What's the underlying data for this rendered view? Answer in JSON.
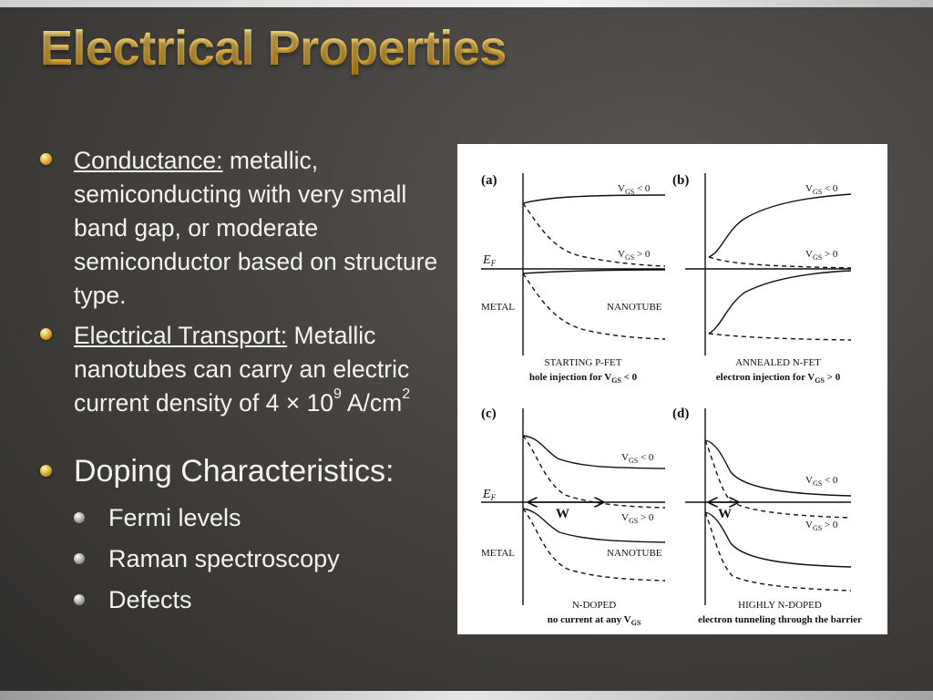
{
  "slide": {
    "title": "Electrical Properties",
    "bullets": [
      {
        "label": "Conductance:",
        "text": " metallic, semiconducting with very small band gap, or moderate semiconductor based on structure type."
      },
      {
        "label": "Electrical Transport:",
        "text": " Metallic nanotubes can carry an electric current density of 4 × 10",
        "sup1": "9",
        "mid": " A/cm",
        "sup2": "2"
      },
      {
        "text": "Doping Characteristics:",
        "subitems": [
          "Fermi levels",
          "Raman spectroscopy",
          "Defects"
        ]
      }
    ]
  },
  "figure": {
    "panels": [
      {
        "label": "(a)",
        "curve_top": "V",
        "curve_top_sub": "GS",
        "curve_top_cond": " < 0",
        "curve_bottom": "V",
        "curve_bottom_sub": "GS",
        "curve_bottom_cond": " > 0",
        "left_text": "METAL",
        "right_text": "NANOTUBE",
        "axis_label": "E",
        "axis_sub": "F",
        "caption1": "STARTING P-FET",
        "caption2": "hole injection for V",
        "caption2_sub": "GS",
        "caption2_end": " < 0"
      },
      {
        "label": "(b)",
        "curve_top": "V",
        "curve_top_sub": "GS",
        "curve_top_cond": " < 0",
        "curve_bottom": "V",
        "curve_bottom_sub": "GS",
        "curve_bottom_cond": " > 0",
        "caption1": "ANNEALED N-FET",
        "caption2": "electron injection for V",
        "caption2_sub": "GS",
        "caption2_end": " > 0"
      },
      {
        "label": "(c)",
        "curve_top": "V",
        "curve_top_sub": "GS",
        "curve_top_cond": " < 0",
        "curve_bottom": "V",
        "curve_bottom_sub": "GS",
        "curve_bottom_cond": " > 0",
        "left_text": "METAL",
        "right_text": "NANOTUBE",
        "axis_label": "E",
        "axis_sub": "F",
        "width_label": "W",
        "caption1": "N-DOPED",
        "caption2": "no current at any V",
        "caption2_sub": "GS"
      },
      {
        "label": "(d)",
        "curve_top": "V",
        "curve_top_sub": "GS",
        "curve_top_cond": " < 0",
        "curve_bottom": "V",
        "curve_bottom_sub": "GS",
        "curve_bottom_cond": " > 0",
        "width_label": "W",
        "caption1": "HIGHLY N-DOPED",
        "caption2": "electron tunneling through the barrier"
      }
    ]
  },
  "colors": {
    "title": "#f2c14c",
    "text": "#f4f4f4",
    "figure_bg": "#ffffff"
  }
}
